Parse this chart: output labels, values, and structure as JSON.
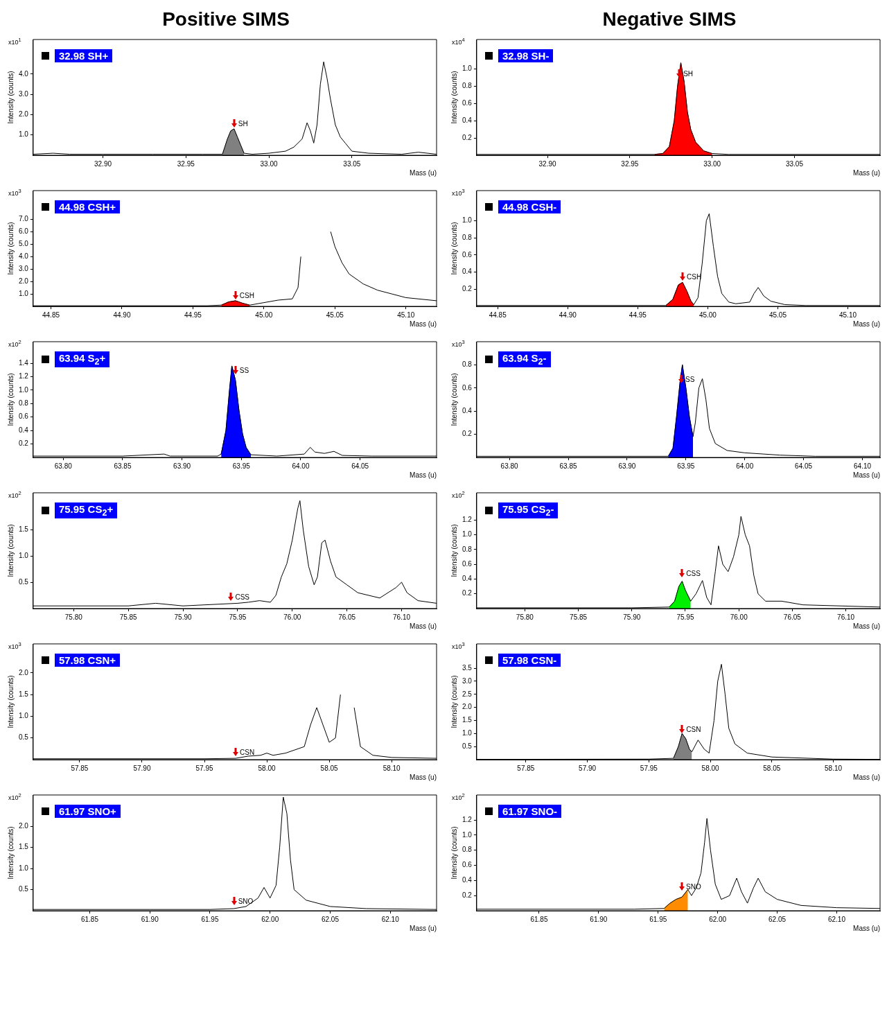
{
  "chart_data": [
    {
      "type": "line",
      "title": "Positive SIMS",
      "xlabel": "Mass (u)",
      "ylabel": "Intensity (counts)",
      "legend": "top left",
      "xlim": [
        32.858,
        33.101
      ],
      "ylim": [
        0,
        5.7
      ],
      "xticks": [
        {
          "value": 32.9,
          "label": "32.90"
        },
        32.95,
        {
          "value": 33,
          "label": "33.00"
        },
        33.05
      ],
      "yticks": [
        {
          "value": 1,
          "label": "1.0"
        },
        {
          "value": 2,
          "label": "2.0"
        },
        {
          "value": 3,
          "label": "3.0"
        },
        {
          "value": 4,
          "label": "4.0"
        }
      ],
      "annotations": [
        "x10$^{1}$",
        {
          "text": "SH",
          "x": 32.979,
          "y": 1.3
        }
      ],
      "series": [
        {
          "name": "32.98 SH+",
          "color": "#000000",
          "x": [
            32.858,
            32.87,
            32.88,
            32.9,
            32.93,
            32.96,
            32.972,
            32.975,
            32.977,
            32.979,
            32.981,
            32.983,
            32.985,
            32.99,
            33.0,
            33.01,
            33.015,
            33.02,
            33.023,
            33.025,
            33.027,
            33.029,
            33.031,
            33.033,
            33.035,
            33.037,
            33.04,
            33.043,
            33.046,
            33.05,
            33.06,
            33.08,
            33.09,
            33.101
          ],
          "values": [
            0.05,
            0.1,
            0.05,
            0.05,
            0.05,
            0.05,
            0.05,
            0.8,
            1.2,
            1.3,
            0.9,
            0.5,
            0.1,
            0.05,
            0.1,
            0.2,
            0.4,
            0.8,
            1.6,
            1.2,
            0.6,
            1.5,
            3.5,
            4.6,
            3.8,
            2.8,
            1.5,
            0.9,
            0.6,
            0.2,
            0.1,
            0.05,
            0.15,
            0.05
          ]
        },
        {
          "type": "area",
          "color": "#808080",
          "x": [
            32.972,
            32.975,
            32.977,
            32.979,
            32.981,
            32.983,
            32.985
          ],
          "values": [
            0.05,
            0.8,
            1.2,
            1.3,
            0.9,
            0.5,
            0.1
          ]
        }
      ]
    },
    {
      "type": "line",
      "title": "Negative SIMS",
      "xlabel": "Mass (u)",
      "ylabel": "Intensity (counts)",
      "legend": "top left",
      "xlim": [
        32.857,
        33.102
      ],
      "ylim": [
        0,
        1.34
      ],
      "xticks": [
        {
          "value": 32.9,
          "label": "32.90"
        },
        32.95,
        {
          "value": 33,
          "label": "33.00"
        },
        33.05
      ],
      "yticks": [
        0.2,
        0.4,
        0.6,
        0.8,
        {
          "value": 1,
          "label": "1.0"
        }
      ],
      "annotations": [
        "x10$^{4}$",
        {
          "text": "SH",
          "x": 32.98,
          "y": 0.88
        }
      ],
      "series": [
        {
          "name": "32.98 SH-",
          "color": "#000000",
          "x": [
            32.857,
            32.9,
            32.95,
            32.965,
            32.97,
            32.974,
            32.977,
            32.979,
            32.981,
            32.983,
            32.985,
            32.987,
            32.99,
            32.995,
            33.0,
            33.01,
            33.102
          ],
          "values": [
            0.01,
            0.01,
            0.01,
            0.01,
            0.02,
            0.1,
            0.4,
            0.8,
            1.07,
            0.85,
            0.5,
            0.3,
            0.15,
            0.05,
            0.02,
            0.01,
            0.01
          ]
        },
        {
          "type": "area",
          "color": "#ff0000",
          "x": [
            32.965,
            32.97,
            32.974,
            32.977,
            32.979,
            32.981,
            32.983,
            32.985,
            32.987,
            32.99,
            32.995,
            33.0
          ],
          "values": [
            0.01,
            0.02,
            0.1,
            0.4,
            0.8,
            1.07,
            0.85,
            0.5,
            0.3,
            0.15,
            0.05,
            0.02
          ]
        }
      ]
    },
    {
      "type": "line",
      "xlabel": "Mass (u)",
      "ylabel": "Intensity (counts)",
      "legend": "top left",
      "xlim": [
        44.8375,
        45.1216
      ],
      "ylim": [
        0,
        9.3
      ],
      "xticks": [
        44.85,
        {
          "value": 44.9,
          "label": "44.90"
        },
        44.95,
        {
          "value": 45,
          "label": "45.00"
        },
        45.05,
        {
          "value": 45.1,
          "label": "45.10"
        }
      ],
      "yticks": [
        {
          "value": 1,
          "label": "1.0"
        },
        {
          "value": 2,
          "label": "2.0"
        },
        {
          "value": 3,
          "label": "3.0"
        },
        {
          "value": 4,
          "label": "4.0"
        },
        {
          "value": 5,
          "label": "5.0"
        },
        {
          "value": 6,
          "label": "6.0"
        },
        {
          "value": 7,
          "label": "7.0"
        }
      ],
      "annotations": [
        "x10$^{3}$",
        {
          "text": "CSH",
          "x": 44.98,
          "y": 0.45
        }
      ],
      "series": [
        {
          "name": "44.98 CSH+",
          "color": "#000000",
          "x": [
            44.8375,
            44.9,
            44.96,
            44.97,
            44.975,
            44.98,
            44.985,
            44.99,
            45.0,
            45.01,
            45.02,
            45.024,
            45.026,
            45.028,
            45.036,
            45.044,
            45.047,
            45.05,
            45.055,
            45.06,
            45.07,
            45.08,
            45.09,
            45.1,
            45.1216
          ],
          "values": [
            0.05,
            0.05,
            0.05,
            0.1,
            0.35,
            0.45,
            0.25,
            0.1,
            0.3,
            0.5,
            0.6,
            1.5,
            4.0,
            null,
            null,
            null,
            6.0,
            4.8,
            3.5,
            2.6,
            1.8,
            1.3,
            1.0,
            0.7,
            0.45
          ]
        },
        {
          "type": "area",
          "color": "#ff0000",
          "x": [
            44.97,
            44.975,
            44.98,
            44.985,
            44.99
          ],
          "values": [
            0.1,
            0.35,
            0.45,
            0.25,
            0.1
          ]
        }
      ]
    },
    {
      "type": "line",
      "xlabel": "Mass (u)",
      "ylabel": "Intensity (counts)",
      "legend": "top left",
      "xlim": [
        44.835,
        45.123
      ],
      "ylim": [
        0,
        1.35
      ],
      "xticks": [
        44.85,
        {
          "value": 44.9,
          "label": "44.90"
        },
        44.95,
        {
          "value": 45,
          "label": "45.00"
        },
        45.05,
        {
          "value": 45.1,
          "label": "45.10"
        }
      ],
      "yticks": [
        0.2,
        0.4,
        0.6,
        0.8,
        {
          "value": 1,
          "label": "1.0"
        }
      ],
      "annotations": [
        "x10$^{3}$",
        {
          "text": "CSH",
          "x": 44.982,
          "y": 0.28
        }
      ],
      "series": [
        {
          "name": "44.98 CSH-",
          "color": "#000000",
          "x": [
            44.835,
            44.95,
            44.97,
            44.975,
            44.979,
            44.982,
            44.985,
            44.988,
            44.99,
            44.993,
            44.996,
            44.999,
            45.001,
            45.004,
            45.007,
            45.01,
            45.015,
            45.02,
            45.025,
            45.03,
            45.033,
            45.036,
            45.04,
            45.045,
            45.055,
            45.07,
            45.123
          ],
          "values": [
            0.01,
            0.01,
            0.01,
            0.08,
            0.25,
            0.28,
            0.18,
            0.06,
            0.02,
            0.1,
            0.5,
            1.0,
            1.08,
            0.7,
            0.35,
            0.15,
            0.05,
            0.03,
            0.04,
            0.05,
            0.15,
            0.22,
            0.12,
            0.06,
            0.02,
            0.01,
            0.01
          ]
        },
        {
          "type": "area",
          "color": "#ff0000",
          "x": [
            44.97,
            44.975,
            44.979,
            44.982,
            44.985,
            44.988,
            44.99
          ],
          "values": [
            0.01,
            0.08,
            0.25,
            0.28,
            0.18,
            0.06,
            0.02
          ]
        }
      ]
    },
    {
      "type": "line",
      "xlabel": "Mass (u)",
      "ylabel": "Intensity (counts)",
      "legend": "top left",
      "xlim": [
        63.7747,
        64.1144
      ],
      "ylim": [
        0,
        1.72
      ],
      "xticks": [
        {
          "value": 63.8,
          "label": "63.80"
        },
        63.85,
        {
          "value": 63.9,
          "label": "63.90"
        },
        63.95,
        {
          "value": 64,
          "label": "64.00"
        },
        64.05
      ],
      "yticks": [
        0.2,
        0.4,
        0.6,
        0.8,
        {
          "value": 1,
          "label": "1.0"
        },
        1.2,
        1.4
      ],
      "annotations": [
        "x10$^{2}$",
        {
          "text": "SS",
          "x": 63.945,
          "y": 1.22
        }
      ],
      "series": [
        {
          "name": "63.94 S$_{2}$+",
          "color": "#000000",
          "x": [
            63.7747,
            63.85,
            63.885,
            63.89,
            63.93,
            63.933,
            63.937,
            63.94,
            63.942,
            63.945,
            63.948,
            63.951,
            63.954,
            63.958,
            63.98,
            64.003,
            64.008,
            64.012,
            64.02,
            64.028,
            64.035,
            64.06,
            64.1144
          ],
          "values": [
            0.02,
            0.02,
            0.05,
            0.02,
            0.02,
            0.05,
            0.4,
            1.0,
            1.36,
            1.15,
            0.7,
            0.35,
            0.15,
            0.04,
            0.02,
            0.05,
            0.15,
            0.08,
            0.06,
            0.09,
            0.03,
            0.02,
            0.02
          ]
        },
        {
          "type": "area",
          "color": "#0000ff",
          "x": [
            63.933,
            63.937,
            63.94,
            63.942,
            63.945,
            63.948,
            63.951,
            63.954,
            63.958
          ],
          "values": [
            0.05,
            0.4,
            1.0,
            1.36,
            1.15,
            0.7,
            0.35,
            0.15,
            0.04
          ]
        }
      ]
    },
    {
      "type": "line",
      "xlabel": "Mass (u)",
      "ylabel": "Intensity (counts)",
      "legend": "top left",
      "xlim": [
        63.7722,
        64.115
      ],
      "ylim": [
        0,
        1.0
      ],
      "xticks": [
        {
          "value": 63.8,
          "label": "63.80"
        },
        63.85,
        {
          "value": 63.9,
          "label": "63.90"
        },
        63.95,
        {
          "value": 64,
          "label": "64.00"
        },
        64.05,
        {
          "value": 64.1,
          "label": "64.10"
        }
      ],
      "yticks": [
        0.2,
        0.4,
        0.6,
        0.8
      ],
      "annotations": [
        "x10$^{3}$",
        {
          "text": "SS",
          "x": 63.946,
          "y": 0.63
        }
      ],
      "series": [
        {
          "name": "63.94 S$_{2}$-",
          "color": "#000000",
          "x": [
            63.7722,
            63.9,
            63.935,
            63.939,
            63.942,
            63.945,
            63.947,
            63.95,
            63.953,
            63.956,
            63.958,
            63.961,
            63.964,
            63.967,
            63.97,
            63.975,
            63.985,
            64.0,
            64.03,
            64.06,
            64.115
          ],
          "values": [
            0.01,
            0.01,
            0.01,
            0.08,
            0.35,
            0.65,
            0.8,
            0.6,
            0.35,
            0.18,
            0.3,
            0.6,
            0.68,
            0.5,
            0.25,
            0.12,
            0.06,
            0.04,
            0.02,
            0.01,
            0.01
          ]
        },
        {
          "type": "area",
          "color": "#0000ff",
          "x": [
            63.935,
            63.939,
            63.942,
            63.945,
            63.947,
            63.95,
            63.953,
            63.956
          ],
          "values": [
            0.01,
            0.08,
            0.35,
            0.65,
            0.8,
            0.6,
            0.35,
            0.18
          ]
        }
      ]
    },
    {
      "type": "line",
      "xlabel": "Mass (u)",
      "ylabel": "Intensity (counts)",
      "legend": "top left",
      "xlim": [
        75.763,
        76.132
      ],
      "ylim": [
        0,
        2.2
      ],
      "xticks": [
        {
          "value": 75.8,
          "label": "75.80"
        },
        75.85,
        {
          "value": 75.9,
          "label": "75.90"
        },
        75.95,
        {
          "value": 76,
          "label": "76.00"
        },
        76.05,
        {
          "value": 76.1,
          "label": "76.10"
        }
      ],
      "yticks": [
        0.5,
        {
          "value": 1,
          "label": "1.0"
        },
        1.5
      ],
      "annotations": [
        "x10$^{2}$",
        {
          "text": "CSS",
          "x": 75.944,
          "y": 0.12
        }
      ],
      "series": [
        {
          "name": "75.95 CS$_{2}$+",
          "color": "#000000",
          "x": [
            75.763,
            75.8,
            75.85,
            75.875,
            75.9,
            75.95,
            75.96,
            75.97,
            75.98,
            75.985,
            75.99,
            75.995,
            76.0,
            76.005,
            76.007,
            76.01,
            76.015,
            76.02,
            76.023,
            76.027,
            76.03,
            76.035,
            76.04,
            76.05,
            76.06,
            76.08,
            76.095,
            76.1,
            76.105,
            76.115,
            76.132
          ],
          "values": [
            0.05,
            0.05,
            0.05,
            0.1,
            0.05,
            0.1,
            0.12,
            0.15,
            0.12,
            0.25,
            0.6,
            0.85,
            1.3,
            1.9,
            2.05,
            1.5,
            0.8,
            0.45,
            0.6,
            1.25,
            1.3,
            0.9,
            0.6,
            0.45,
            0.3,
            0.2,
            0.4,
            0.5,
            0.3,
            0.15,
            0.1
          ]
        }
      ]
    },
    {
      "type": "line",
      "xlabel": "Mass (u)",
      "ylabel": "Intensity (counts)",
      "legend": "top left",
      "xlim": [
        75.755,
        76.132
      ],
      "ylim": [
        0,
        1.57
      ],
      "xticks": [
        {
          "value": 75.8,
          "label": "75.80"
        },
        75.85,
        {
          "value": 75.9,
          "label": "75.90"
        },
        75.95,
        {
          "value": 76,
          "label": "76.00"
        },
        76.05,
        {
          "value": 76.1,
          "label": "76.10"
        }
      ],
      "yticks": [
        0.2,
        0.4,
        0.6,
        0.8,
        {
          "value": 1,
          "label": "1.0"
        },
        1.2
      ],
      "annotations": [
        "x10$^{2}$",
        {
          "text": "CSS",
          "x": 75.947,
          "y": 0.4
        }
      ],
      "series": [
        {
          "name": "75.95 CS$_{2}$-",
          "color": "#000000",
          "x": [
            75.755,
            75.9,
            75.935,
            75.94,
            75.944,
            75.947,
            75.95,
            75.955,
            75.96,
            75.966,
            75.97,
            75.974,
            75.978,
            75.981,
            75.985,
            75.99,
            75.995,
            76.0,
            76.002,
            76.006,
            76.01,
            76.014,
            76.018,
            76.025,
            76.04,
            76.06,
            76.132
          ],
          "values": [
            0.01,
            0.01,
            0.02,
            0.1,
            0.3,
            0.37,
            0.25,
            0.1,
            0.2,
            0.38,
            0.15,
            0.05,
            0.5,
            0.85,
            0.6,
            0.5,
            0.7,
            1.0,
            1.25,
            1.0,
            0.85,
            0.45,
            0.2,
            0.1,
            0.1,
            0.05,
            0.02
          ]
        },
        {
          "type": "area",
          "color": "#00ee00",
          "x": [
            75.935,
            75.94,
            75.944,
            75.947,
            75.95,
            75.955
          ],
          "values": [
            0.02,
            0.1,
            0.3,
            0.37,
            0.25,
            0.1
          ]
        }
      ]
    },
    {
      "type": "line",
      "xlabel": "Mass (u)",
      "ylabel": "Intensity (counts)",
      "legend": "top left",
      "xlim": [
        57.8128,
        58.136
      ],
      "ylim": [
        0,
        2.67
      ],
      "xticks": [
        57.85,
        {
          "value": 57.9,
          "label": "57.90"
        },
        57.95,
        {
          "value": 58,
          "label": "58.00"
        },
        58.05,
        {
          "value": 58.1,
          "label": "58.10"
        }
      ],
      "yticks": [
        0.5,
        {
          "value": 1,
          "label": "1.0"
        },
        1.5,
        {
          "value": 2,
          "label": "2.0"
        }
      ],
      "annotations": [
        "x10$^{3}$",
        {
          "text": "CSN",
          "x": 57.975,
          "y": 0.05
        }
      ],
      "series": [
        {
          "name": "57.98 CSN+",
          "color": "#000000",
          "x": [
            57.8128,
            57.95,
            57.975,
            57.985,
            57.995,
            58.0,
            58.005,
            58.015,
            58.025,
            58.03,
            58.035,
            58.04,
            58.045,
            58.05,
            58.055,
            58.059,
            58.061,
            58.064,
            58.067,
            58.07,
            58.075,
            58.085,
            58.1,
            58.136
          ],
          "values": [
            0.02,
            0.02,
            0.03,
            0.08,
            0.1,
            0.15,
            0.1,
            0.15,
            0.25,
            0.3,
            0.8,
            1.2,
            0.8,
            0.4,
            0.5,
            1.5,
            null,
            null,
            null,
            1.2,
            0.3,
            0.1,
            0.05,
            0.03
          ]
        }
      ]
    },
    {
      "type": "line",
      "xlabel": "Mass (u)",
      "ylabel": "Intensity (counts)",
      "legend": "top left",
      "xlim": [
        57.81,
        58.138
      ],
      "ylim": [
        0,
        4.43
      ],
      "xticks": [
        57.85,
        {
          "value": 57.9,
          "label": "57.90"
        },
        57.95,
        {
          "value": 58,
          "label": "58.00"
        },
        58.05,
        {
          "value": 58.1,
          "label": "58.10"
        }
      ],
      "yticks": [
        0.5,
        {
          "value": 1,
          "label": "1.0"
        },
        1.5,
        {
          "value": 2,
          "label": "2.0"
        },
        2.5,
        {
          "value": 3,
          "label": "3.0"
        },
        3.5
      ],
      "annotations": [
        "x10$^{3}$",
        {
          "text": "CSN",
          "x": 57.977,
          "y": 0.95
        }
      ],
      "series": [
        {
          "name": "57.98 CSN-",
          "color": "#000000",
          "x": [
            57.81,
            57.95,
            57.97,
            57.974,
            57.977,
            57.98,
            57.983,
            57.985,
            57.99,
            57.995,
            57.999,
            58.003,
            58.006,
            58.009,
            58.012,
            58.015,
            58.02,
            58.03,
            58.05,
            58.1,
            58.138
          ],
          "values": [
            0.01,
            0.02,
            0.05,
            0.5,
            1.0,
            0.8,
            0.4,
            0.3,
            0.75,
            0.4,
            0.25,
            1.5,
            3.0,
            3.65,
            2.5,
            1.2,
            0.6,
            0.25,
            0.1,
            0.02,
            0.01
          ]
        },
        {
          "type": "area",
          "color": "#808080",
          "x": [
            57.97,
            57.974,
            57.977,
            57.98,
            57.983,
            57.985
          ],
          "values": [
            0.05,
            0.5,
            1.0,
            0.8,
            0.4,
            0.3
          ]
        }
      ]
    },
    {
      "type": "line",
      "xlabel": "Mass (u)",
      "ylabel": "Intensity (counts)",
      "legend": "top left",
      "xlim": [
        61.803,
        62.1385
      ],
      "ylim": [
        0,
        2.74
      ],
      "xticks": [
        61.85,
        {
          "value": 61.9,
          "label": "61.90"
        },
        61.95,
        {
          "value": 62,
          "label": "62.00"
        },
        62.05,
        {
          "value": 62.1,
          "label": "62.10"
        }
      ],
      "yticks": [
        0.5,
        {
          "value": 1,
          "label": "1.0"
        },
        1.5,
        {
          "value": 2,
          "label": "2.0"
        }
      ],
      "annotations": [
        "x10$^{2}$",
        {
          "text": "SNO",
          "x": 61.97,
          "y": 0.1
        }
      ],
      "series": [
        {
          "name": "61.97 SNO+",
          "color": "#000000",
          "x": [
            61.803,
            61.9,
            61.95,
            61.97,
            61.98,
            61.99,
            61.995,
            62.0,
            62.005,
            62.008,
            62.011,
            62.014,
            62.017,
            62.02,
            62.03,
            62.05,
            62.08,
            62.1385
          ],
          "values": [
            0.03,
            0.03,
            0.03,
            0.05,
            0.1,
            0.3,
            0.55,
            0.3,
            0.6,
            1.5,
            2.69,
            2.3,
            1.2,
            0.5,
            0.25,
            0.1,
            0.05,
            0.03
          ]
        }
      ]
    },
    {
      "type": "line",
      "xlabel": "Mass (u)",
      "ylabel": "Intensity (counts)",
      "legend": "top left",
      "xlim": [
        61.7976,
        62.1364
      ],
      "ylim": [
        0,
        1.53
      ],
      "xticks": [
        61.85,
        {
          "value": 61.9,
          "label": "61.90"
        },
        61.95,
        {
          "value": 62,
          "label": "62.00"
        },
        62.05,
        {
          "value": 62.1,
          "label": "62.10"
        }
      ],
      "yticks": [
        0.2,
        0.4,
        0.6,
        0.8,
        {
          "value": 1,
          "label": "1.0"
        },
        1.2
      ],
      "annotations": [
        "x10$^{2}$",
        {
          "text": "SNO",
          "x": 61.97,
          "y": 0.25
        }
      ],
      "series": [
        {
          "name": "61.97 SNO-",
          "color": "#000000",
          "x": [
            61.7976,
            61.93,
            61.955,
            61.96,
            61.965,
            61.97,
            61.975,
            61.978,
            61.982,
            61.986,
            61.989,
            61.991,
            61.994,
            61.998,
            62.003,
            62.01,
            62.016,
            62.02,
            62.025,
            62.03,
            62.034,
            62.04,
            62.05,
            62.07,
            62.1,
            62.1364
          ],
          "values": [
            0.02,
            0.02,
            0.03,
            0.1,
            0.15,
            0.18,
            0.28,
            0.2,
            0.3,
            0.5,
            0.9,
            1.22,
            0.8,
            0.35,
            0.15,
            0.2,
            0.43,
            0.25,
            0.1,
            0.3,
            0.43,
            0.25,
            0.15,
            0.07,
            0.04,
            0.03
          ]
        },
        {
          "type": "area",
          "color": "#ff8c00",
          "x": [
            61.955,
            61.96,
            61.965,
            61.97,
            61.975
          ],
          "values": [
            0.03,
            0.1,
            0.15,
            0.18,
            0.28
          ]
        }
      ]
    }
  ]
}
